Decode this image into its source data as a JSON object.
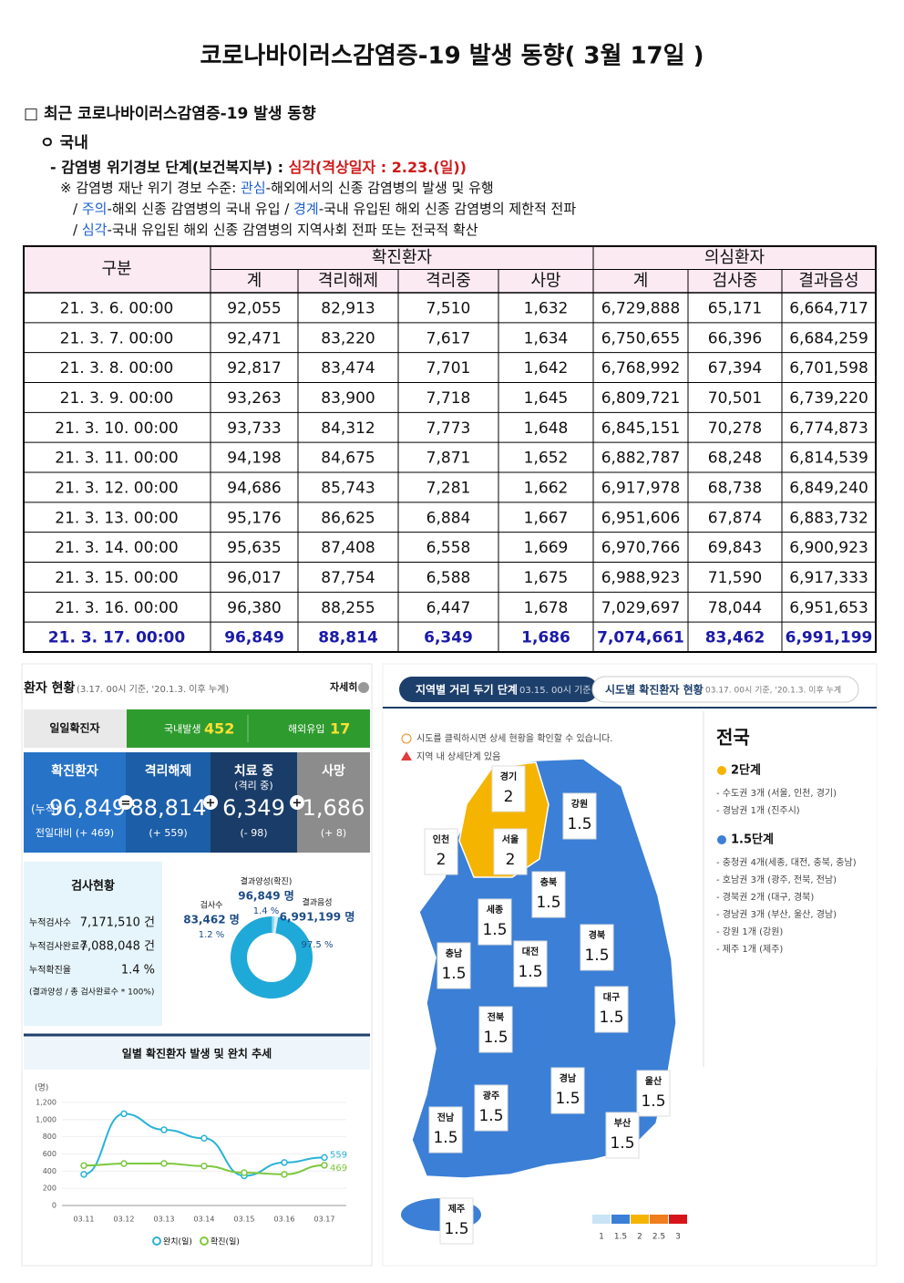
{
  "title": "코로나바이러스감염증-19 발생 동향( 3월 17일 )",
  "section": {
    "heading": "□ 최근 코로나바이러스감염증-19 발생 동향",
    "domestic": "ㅇ 국내",
    "alert_label": "- 감염병 위기경보 단계(보건복지부) : ",
    "alert_value": "심각(격상일자 : 2.23.(일))",
    "notes": [
      [
        "※ 감염병 재난 위기 경보 수준: ",
        "관심",
        "-해외에서의 신종 감염병의 발생 및 유행"
      ],
      [
        "/ ",
        "주의",
        "-해외 신종 감염병의 국내 유입 / ",
        "경계",
        "-국내 유입된 해외 신종 감염병의 제한적 전파"
      ],
      [
        "/ ",
        "심각",
        "-국내 유입된 해외 신종 감염병의 지역사회 전파 또는 전국적 확산"
      ]
    ]
  },
  "table": {
    "group": "구분",
    "confirmed": "확진환자",
    "suspected": "의심환자",
    "columns": [
      "계",
      "격리해제",
      "격리중",
      "사망",
      "계",
      "검사중",
      "결과음성"
    ],
    "rows": [
      [
        "21.  3.   6.  00:00",
        "92,055",
        "82,913",
        "7,510",
        "1,632",
        "6,729,888",
        "65,171",
        "6,664,717"
      ],
      [
        "21.  3.   7.  00:00",
        "92,471",
        "83,220",
        "7,617",
        "1,634",
        "6,750,655",
        "66,396",
        "6,684,259"
      ],
      [
        "21.  3.   8.  00:00",
        "92,817",
        "83,474",
        "7,701",
        "1,642",
        "6,768,992",
        "67,394",
        "6,701,598"
      ],
      [
        "21.  3.   9.  00:00",
        "93,263",
        "83,900",
        "7,718",
        "1,645",
        "6,809,721",
        "70,501",
        "6,739,220"
      ],
      [
        "21.  3.  10.  00:00",
        "93,733",
        "84,312",
        "7,773",
        "1,648",
        "6,845,151",
        "70,278",
        "6,774,873"
      ],
      [
        "21.  3.  11.  00:00",
        "94,198",
        "84,675",
        "7,871",
        "1,652",
        "6,882,787",
        "68,248",
        "6,814,539"
      ],
      [
        "21.  3.  12.  00:00",
        "94,686",
        "85,743",
        "7,281",
        "1,662",
        "6,917,978",
        "68,738",
        "6,849,240"
      ],
      [
        "21.  3.  13.  00:00",
        "95,176",
        "86,625",
        "6,884",
        "1,667",
        "6,951,606",
        "67,874",
        "6,883,732"
      ],
      [
        "21.  3.  14.  00:00",
        "95,635",
        "87,408",
        "6,558",
        "1,669",
        "6,970,766",
        "69,843",
        "6,900,923"
      ],
      [
        "21.  3.  15.  00:00",
        "96,017",
        "87,754",
        "6,588",
        "1,675",
        "6,988,923",
        "71,590",
        "6,917,333"
      ],
      [
        "21.  3.  16.  00:00",
        "96,380",
        "88,255",
        "6,447",
        "1,678",
        "7,029,697",
        "78,044",
        "6,951,653"
      ],
      [
        "21.  3.  17.  00:00",
        "96,849",
        "88,814",
        "6,349",
        "1,686",
        "7,074,661",
        "83,462",
        "6,991,199"
      ]
    ]
  },
  "dashboard": {
    "title": "환자 현황",
    "subtitle": "(3.17. 00시 기준, '20.1.3. 이후 누계)",
    "detail": "자세히",
    "daily": {
      "label": "일일확진자",
      "local_label": "국내발생",
      "local": "452",
      "overseas_label": "해외유입",
      "overseas": "17"
    },
    "cards": [
      {
        "label": "확진환자",
        "prefix": "(누적)",
        "value": "96,849",
        "delta": "전일대비 (+ 469)"
      },
      {
        "label": "격리해제",
        "value": "88,814",
        "delta": "(+ 559)"
      },
      {
        "label": "치료 중",
        "sub": "(격리 중)",
        "value": "6,349",
        "delta": "(- 98)"
      },
      {
        "label": "사망",
        "value": "1,686",
        "delta": "(+ 8)"
      }
    ],
    "operators": [
      "=",
      "+",
      "+"
    ],
    "tests": {
      "title": "검사현황",
      "rows": [
        [
          "누적검사수",
          "7,171,510 건"
        ],
        [
          "누적검사완료수",
          "7,088,048 건"
        ],
        [
          "누적확진율",
          "1.4 %"
        ]
      ],
      "note": "(결과양성 / 총 검사완료수 * 100%)"
    },
    "donut": {
      "labels": [
        "검사수",
        "결과양성(확진)",
        "결과음성"
      ],
      "counts": [
        "83,462 명",
        "96,849 명",
        "6,991,199 명"
      ],
      "values": [
        1.2,
        1.4,
        97.5
      ],
      "value_labels": [
        "1.2 %",
        "1.4 %",
        "97.5 %"
      ],
      "colors": [
        "#8fd3ea",
        "#d8eef7",
        "#1fa9d8"
      ]
    },
    "trend": {
      "type": "line",
      "title": "일별 확진환자 발생 및 완치 추세",
      "y_unit": "(명)",
      "categories": [
        "03.11",
        "03.12",
        "03.13",
        "03.14",
        "03.15",
        "03.16",
        "03.17"
      ],
      "series": [
        {
          "name": "완치(일)",
          "color": "#29b3d6",
          "values": [
            363,
            1068,
            882,
            783,
            346,
            501,
            559
          ]
        },
        {
          "name": "확진(일)",
          "color": "#7dc83e",
          "values": [
            465,
            488,
            490,
            459,
            382,
            363,
            469
          ]
        }
      ],
      "ylim": [
        0,
        1200
      ],
      "yticks": [
        0,
        200,
        400,
        600,
        800,
        {
          "value": 1000,
          "label": "1,000"
        },
        {
          "value": 1200,
          "label": "1,200"
        }
      ]
    }
  },
  "map": {
    "tab_active": "지역별 거리 두기 단계",
    "tab_active_note": "03.15. 00시 기준",
    "tab_other": "시도별 확진환자 현황",
    "tab_other_note": "03.17. 00시 기준, '20.1.3. 이후 누계",
    "notices": [
      "시도를 클릭하시면 상세 현황을 확인할 수 있습니다.",
      "지역 내 상세단계 있음"
    ],
    "regions": [
      {
        "name": "경기",
        "level": 2
      },
      {
        "name": "인천",
        "level": 2
      },
      {
        "name": "서울",
        "level": 2
      },
      {
        "name": "강원",
        "level": 1.5
      },
      {
        "name": "충북",
        "level": 1.5
      },
      {
        "name": "세종",
        "level": 1.5
      },
      {
        "name": "충남",
        "level": 1.5
      },
      {
        "name": "대전",
        "level": 1.5
      },
      {
        "name": "경북",
        "level": 1.5
      },
      {
        "name": "대구",
        "level": 1.5
      },
      {
        "name": "전북",
        "level": 1.5
      },
      {
        "name": "경남",
        "level": 1.5
      },
      {
        "name": "울산",
        "level": 1.5
      },
      {
        "name": "광주",
        "level": 1.5
      },
      {
        "name": "전남",
        "level": 1.5
      },
      {
        "name": "부산",
        "level": 1.5
      },
      {
        "name": "제주",
        "level": 1.5
      }
    ],
    "summary": {
      "title": "전국",
      "groups": [
        {
          "label": "2단계",
          "level": 2,
          "items": [
            "- 수도권 3개 (서울, 인천, 경기)",
            "- 경남권 1개 (진주시)"
          ]
        },
        {
          "label": "1.5단계",
          "level": 1.5,
          "items": [
            "- 충청권 4개(세종, 대전, 충북, 충남)",
            "- 호남권 3개 (광주, 전북, 전남)",
            "- 경북권 2개 (대구, 경북)",
            "- 경남권 3개 (부산, 울산, 경남)",
            "- 강원 1개 (강원)",
            "- 제주 1개 (제주)"
          ]
        }
      ]
    },
    "scale": {
      "values": [
        1,
        1.5,
        2,
        2.5,
        3
      ],
      "colors": [
        "#c8e4f6",
        "#3b7fd6",
        "#f5b400",
        "#f07d1e",
        "#d8141b"
      ]
    }
  }
}
